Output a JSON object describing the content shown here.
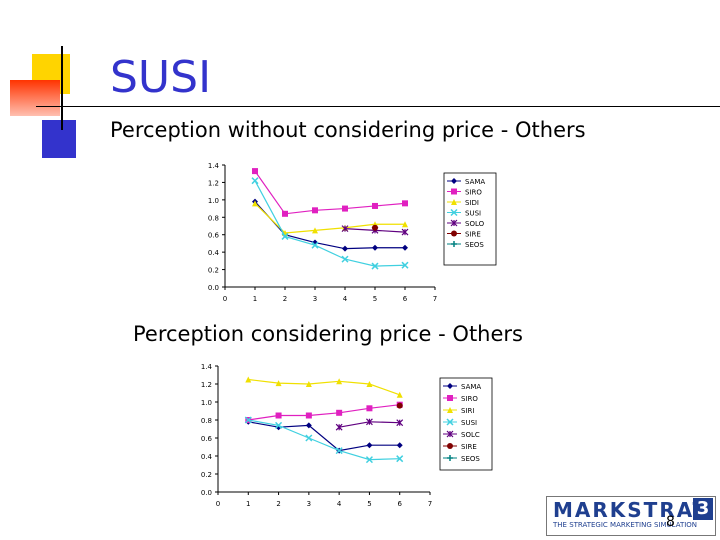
{
  "slide": {
    "title": "SUSI",
    "subtitle1": "Perception without considering price - Others",
    "subtitle2": "Perception considering price - Others",
    "page_number": "8"
  },
  "logo": {
    "brand": "MARKSTRAT",
    "version": "3",
    "tagline": "THE STRATEGIC MARKETING SIMULATION"
  },
  "colors": {
    "title": "#3333cc",
    "deco_yellow": "#ffd400",
    "deco_red": "#ff3300",
    "deco_blue": "#3333cc"
  },
  "chart_data": [
    {
      "type": "line",
      "x": [
        1,
        2,
        3,
        4,
        5,
        6
      ],
      "xticks": [
        "0",
        "1",
        "2",
        "3",
        "4",
        "5",
        "6",
        "7"
      ],
      "yticks": [
        "0.0",
        "0.2",
        "0.4",
        "0.6",
        "0.8",
        "1.0",
        "1.2",
        "1.4"
      ],
      "xlim": [
        0,
        7
      ],
      "ylim": [
        0,
        1.4
      ],
      "legend_position": "right",
      "series": [
        {
          "name": "SAMA",
          "color": "#000080",
          "marker": "diamond",
          "values": [
            0.98,
            0.6,
            0.51,
            0.44,
            0.45,
            0.45
          ]
        },
        {
          "name": "SIRO",
          "color": "#e020c0",
          "marker": "square",
          "values": [
            1.33,
            0.84,
            0.88,
            0.9,
            0.93,
            0.96
          ]
        },
        {
          "name": "SIDI",
          "color": "#f0e000",
          "marker": "triangle",
          "values": [
            0.96,
            0.62,
            0.65,
            0.68,
            0.72,
            0.72
          ]
        },
        {
          "name": "SUSI",
          "color": "#40d0e0",
          "marker": "x",
          "values": [
            1.22,
            0.58,
            0.48,
            0.32,
            0.24,
            0.25
          ]
        },
        {
          "name": "SOLO",
          "color": "#600080",
          "marker": "star",
          "values": [
            null,
            null,
            null,
            0.67,
            0.65,
            0.63
          ]
        },
        {
          "name": "SIRE",
          "color": "#800000",
          "marker": "circle",
          "values": [
            null,
            null,
            null,
            null,
            0.68,
            null
          ]
        },
        {
          "name": "SEOS",
          "color": "#008080",
          "marker": "plus",
          "values": [
            null,
            null,
            null,
            null,
            null,
            null
          ]
        }
      ]
    },
    {
      "type": "line",
      "x": [
        1,
        2,
        3,
        4,
        5,
        6
      ],
      "xticks": [
        "0",
        "1",
        "2",
        "3",
        "4",
        "5",
        "6",
        "7"
      ],
      "yticks": [
        "0.0",
        "0.2",
        "0.4",
        "0.6",
        "0.8",
        "1.0",
        "1.2",
        "1.4"
      ],
      "xlim": [
        0,
        7
      ],
      "ylim": [
        0,
        1.4
      ],
      "legend_position": "right",
      "series": [
        {
          "name": "SAMA",
          "color": "#000080",
          "marker": "diamond",
          "values": [
            0.78,
            0.72,
            0.74,
            0.46,
            0.52,
            0.52
          ]
        },
        {
          "name": "SIRO",
          "color": "#e020c0",
          "marker": "square",
          "values": [
            0.8,
            0.85,
            0.85,
            0.88,
            0.93,
            0.97
          ]
        },
        {
          "name": "SIRI",
          "color": "#f0e000",
          "marker": "triangle",
          "values": [
            1.25,
            1.21,
            1.2,
            1.23,
            1.2,
            1.08
          ]
        },
        {
          "name": "SUSI",
          "color": "#40d0e0",
          "marker": "x",
          "values": [
            0.8,
            0.74,
            0.6,
            0.46,
            0.36,
            0.37
          ]
        },
        {
          "name": "SOLC",
          "color": "#600080",
          "marker": "star",
          "values": [
            null,
            null,
            null,
            0.72,
            0.78,
            0.77
          ]
        },
        {
          "name": "SIRE",
          "color": "#800000",
          "marker": "circle",
          "values": [
            null,
            null,
            null,
            null,
            null,
            0.96
          ]
        },
        {
          "name": "SEOS",
          "color": "#008080",
          "marker": "plus",
          "values": [
            null,
            null,
            null,
            null,
            null,
            null
          ]
        }
      ]
    }
  ]
}
